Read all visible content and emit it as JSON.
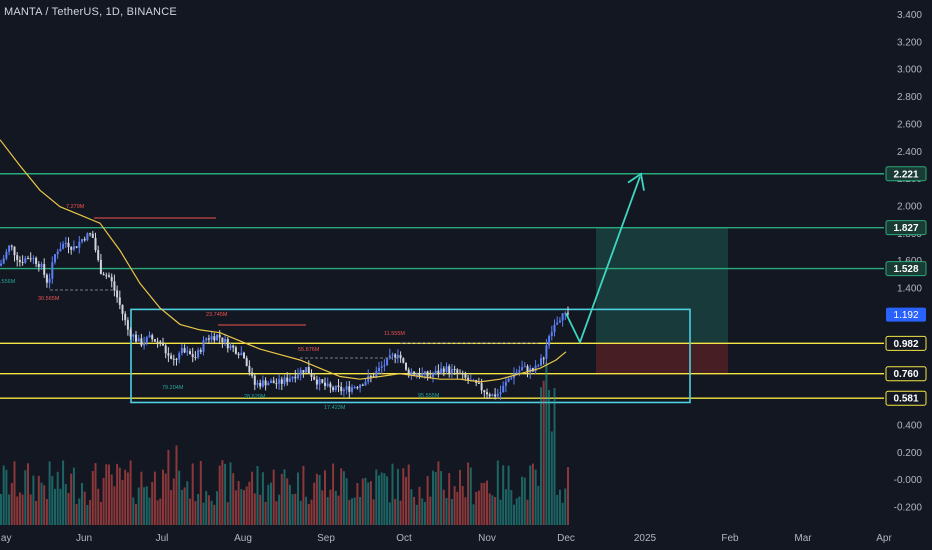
{
  "chart_data": {
    "type": "candlestick",
    "title": "MANTA / TetherUS, 1D, BINANCE",
    "y_axis_ticks": [
      "3.400",
      "3.200",
      "3.000",
      "2.800",
      "2.600",
      "2.400",
      "2.200",
      "2.000",
      "1.800",
      "1.600",
      "1.400",
      "1.200",
      "1.000",
      "0.800",
      "0.600",
      "0.400",
      "0.200",
      "-0.000",
      "-0.200"
    ],
    "x_axis_ticks": [
      "May",
      "Jun",
      "Jul",
      "Aug",
      "Sep",
      "Oct",
      "Nov",
      "Dec",
      "2025",
      "Feb",
      "Mar",
      "Apr"
    ],
    "current_price": "1.192",
    "horizontal_levels": [
      {
        "value": 2.221,
        "label": "2.221",
        "color": "#2aa97b"
      },
      {
        "value": 1.827,
        "label": "1.827",
        "color": "#2aa97b"
      },
      {
        "value": 1.528,
        "label": "1.528",
        "color": "#2aa97b"
      },
      {
        "value": 0.982,
        "label": "0.982",
        "color": "#f5e642"
      },
      {
        "value": 0.76,
        "label": "0.760",
        "color": "#f5e642"
      },
      {
        "value": 0.581,
        "label": "0.581",
        "color": "#f5e642"
      }
    ],
    "volume_annotations": [
      "7.279M",
      "30.565M",
      "23.745M",
      "55.876M",
      "11.555M",
      "79.204M",
      "28.629M",
      "17.423M",
      "95.555M",
      ".556M"
    ],
    "range_box": {
      "price_top": 1.23,
      "price_bottom": 0.55
    },
    "position_box": {
      "entry": 0.982,
      "target": 1.827,
      "stop": 0.76
    },
    "colors": {
      "up": "#5b7ff5",
      "down": "#d1d4dc",
      "ma": "#e9c646",
      "volume_up": "#26a69a",
      "volume_down": "#ef5350",
      "arrow": "#3fd5c0",
      "box": "#4dd0e1"
    }
  }
}
